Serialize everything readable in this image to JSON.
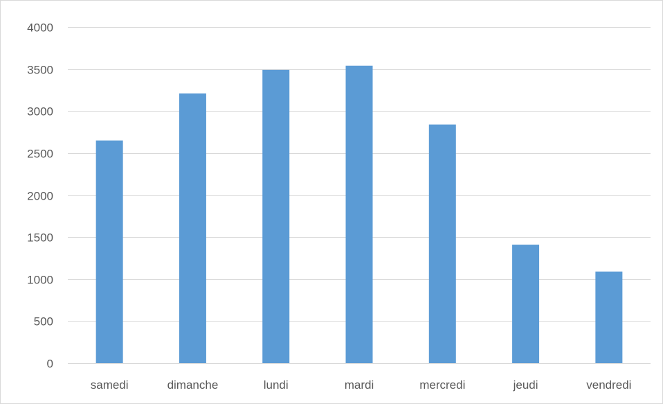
{
  "chart_data": {
    "type": "bar",
    "title": "",
    "xlabel": "",
    "ylabel": "",
    "categories": [
      "samedi",
      "dimanche",
      "lundi",
      "mardi",
      "mercredi",
      "jeudi",
      "vendredi"
    ],
    "values": [
      2650,
      3210,
      3490,
      3540,
      2840,
      1410,
      1090
    ],
    "ylim": [
      0,
      4000
    ],
    "yticks": [
      0,
      500,
      1000,
      1500,
      2000,
      2500,
      3000,
      3500,
      4000
    ],
    "ytick_labels": [
      "0",
      "500",
      "1000",
      "1500",
      "2000",
      "2500",
      "3000",
      "3500",
      "4000"
    ],
    "grid": true,
    "legend": "none",
    "bar_color": "#5b9bd5",
    "grid_color": "#d9d9d9",
    "label_color": "#595959"
  }
}
